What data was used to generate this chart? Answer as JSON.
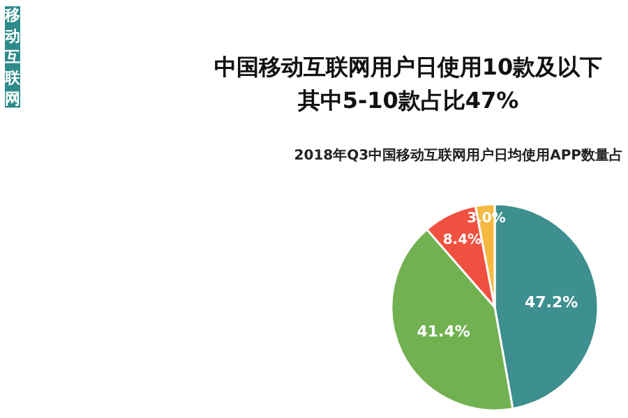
{
  "chart_data": {
    "type": "pie",
    "title": "中国移动互联网用户日使用10款及以下",
    "subtitle": "其中5-10款占比47%",
    "annotations": [
      "2018年Q3中国移动互联网用户日均使用APP数量占",
      "移动互联网"
    ],
    "categories": [
      null,
      null,
      null,
      null
    ],
    "values": [
      47.2,
      41.4,
      8.4,
      3.0
    ],
    "colors": [
      "#3e8f8f",
      "#72b152",
      "#f0503f",
      "#f5b942"
    ],
    "value_labels": [
      "47.2%",
      "41.4%",
      "8.4%",
      "3.0%"
    ]
  }
}
